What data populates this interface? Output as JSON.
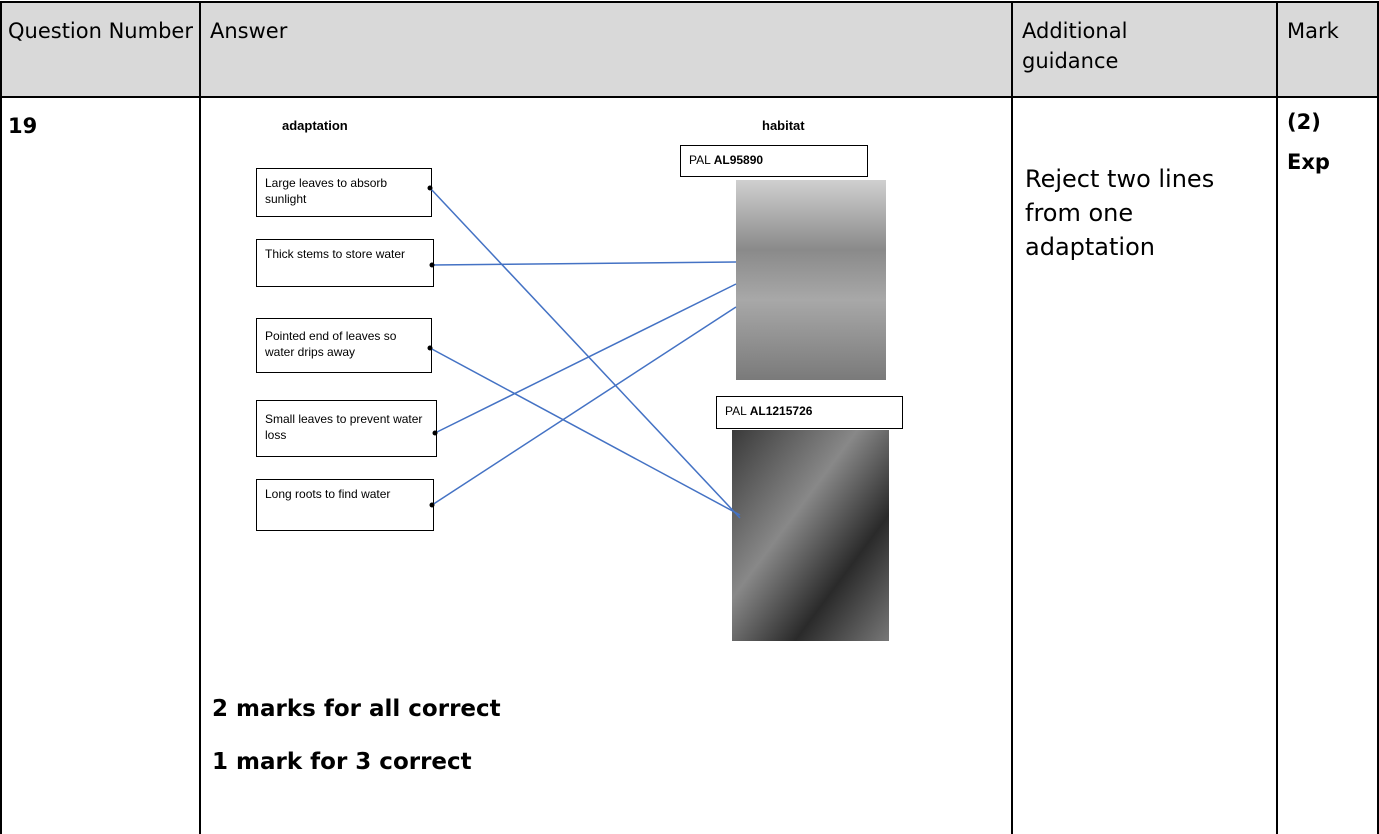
{
  "header": {
    "question_number": "Question Number",
    "answer": "Answer",
    "additional_guidance": "Additional guidance",
    "mark": "Mark"
  },
  "row": {
    "question_number": "19",
    "answer": {
      "adaptation_heading": "adaptation",
      "habitat_heading": "habitat",
      "adaptations": [
        "Large leaves to absorb sunlight",
        "Thick stems to store water",
        "Pointed end of leaves so water drips away",
        "Small leaves to prevent water loss",
        "Long roots to find water"
      ],
      "habitats": [
        {
          "prefix": "PAL",
          "code": "AL95890"
        },
        {
          "prefix": "PAL",
          "code": "AL1215726"
        }
      ],
      "notes": [
        "2 marks for all correct",
        "1 mark for 3 correct"
      ]
    },
    "additional_guidance": "Reject two lines from one adaptation",
    "mark": [
      "(2)",
      "Exp"
    ]
  }
}
